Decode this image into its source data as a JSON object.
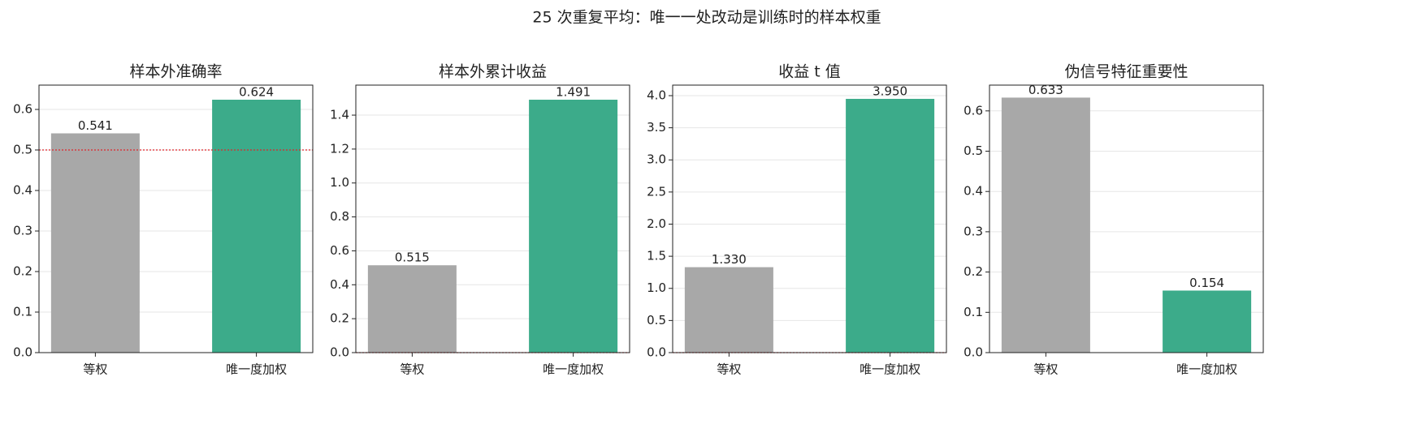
{
  "title": "25 次重复平均：唯一一处改动是训练时的样本权重",
  "chart_data": [
    {
      "type": "bar",
      "title": "样本外准确率",
      "categories": [
        "等权",
        "唯一度加权"
      ],
      "values": [
        0.541,
        0.624
      ],
      "colors": [
        "#a8a8a8",
        "#3cab8a"
      ],
      "ylim": [
        0,
        0.66
      ],
      "yticks": [
        {
          "value": 0,
          "label": "0.0"
        },
        0.1,
        0.2,
        0.3,
        0.4,
        0.5,
        0.6
      ],
      "grid": true,
      "ref_line": 0.5,
      "ref_color": "#e0252b"
    },
    {
      "type": "bar",
      "title": "样本外累计收益",
      "categories": [
        "等权",
        "唯一度加权"
      ],
      "values": [
        0.515,
        1.491
      ],
      "colors": [
        "#a8a8a8",
        "#3cab8a"
      ],
      "ylim": [
        0,
        1.577
      ],
      "yticks": [
        {
          "value": 0,
          "label": "0.0"
        },
        0.2,
        0.4,
        0.6,
        0.8,
        {
          "value": 1,
          "label": "1.0"
        },
        1.2,
        1.4
      ],
      "grid": true,
      "ref_line": 0,
      "ref_color": "#e0252b"
    },
    {
      "type": "bar",
      "title": "收益 t 值",
      "categories": [
        "等权",
        "唯一度加权"
      ],
      "values": [
        1.33,
        3.95
      ],
      "value_labels": [
        "1.330",
        "3.950"
      ],
      "colors": [
        "#a8a8a8",
        "#3cab8a"
      ],
      "ylim": [
        0,
        4.164
      ],
      "yticks": [
        {
          "value": 0,
          "label": "0.0"
        },
        0.5,
        {
          "value": 1,
          "label": "1.0"
        },
        1.5,
        {
          "value": 2,
          "label": "2.0"
        },
        2.5,
        {
          "value": 3,
          "label": "3.0"
        },
        3.5,
        {
          "value": 4,
          "label": "4.0"
        }
      ],
      "grid": true,
      "ref_line": 0,
      "ref_color": "#e0252b"
    },
    {
      "type": "bar",
      "title": "伪信号特征重要性",
      "categories": [
        "等权",
        "唯一度加权"
      ],
      "values": [
        0.633,
        0.154
      ],
      "colors": [
        "#a8a8a8",
        "#3cab8a"
      ],
      "ylim": [
        0,
        0.664
      ],
      "yticks": [
        {
          "value": 0,
          "label": "0.0"
        },
        0.1,
        0.2,
        0.3,
        0.4,
        0.5,
        0.6
      ],
      "grid": true
    }
  ]
}
